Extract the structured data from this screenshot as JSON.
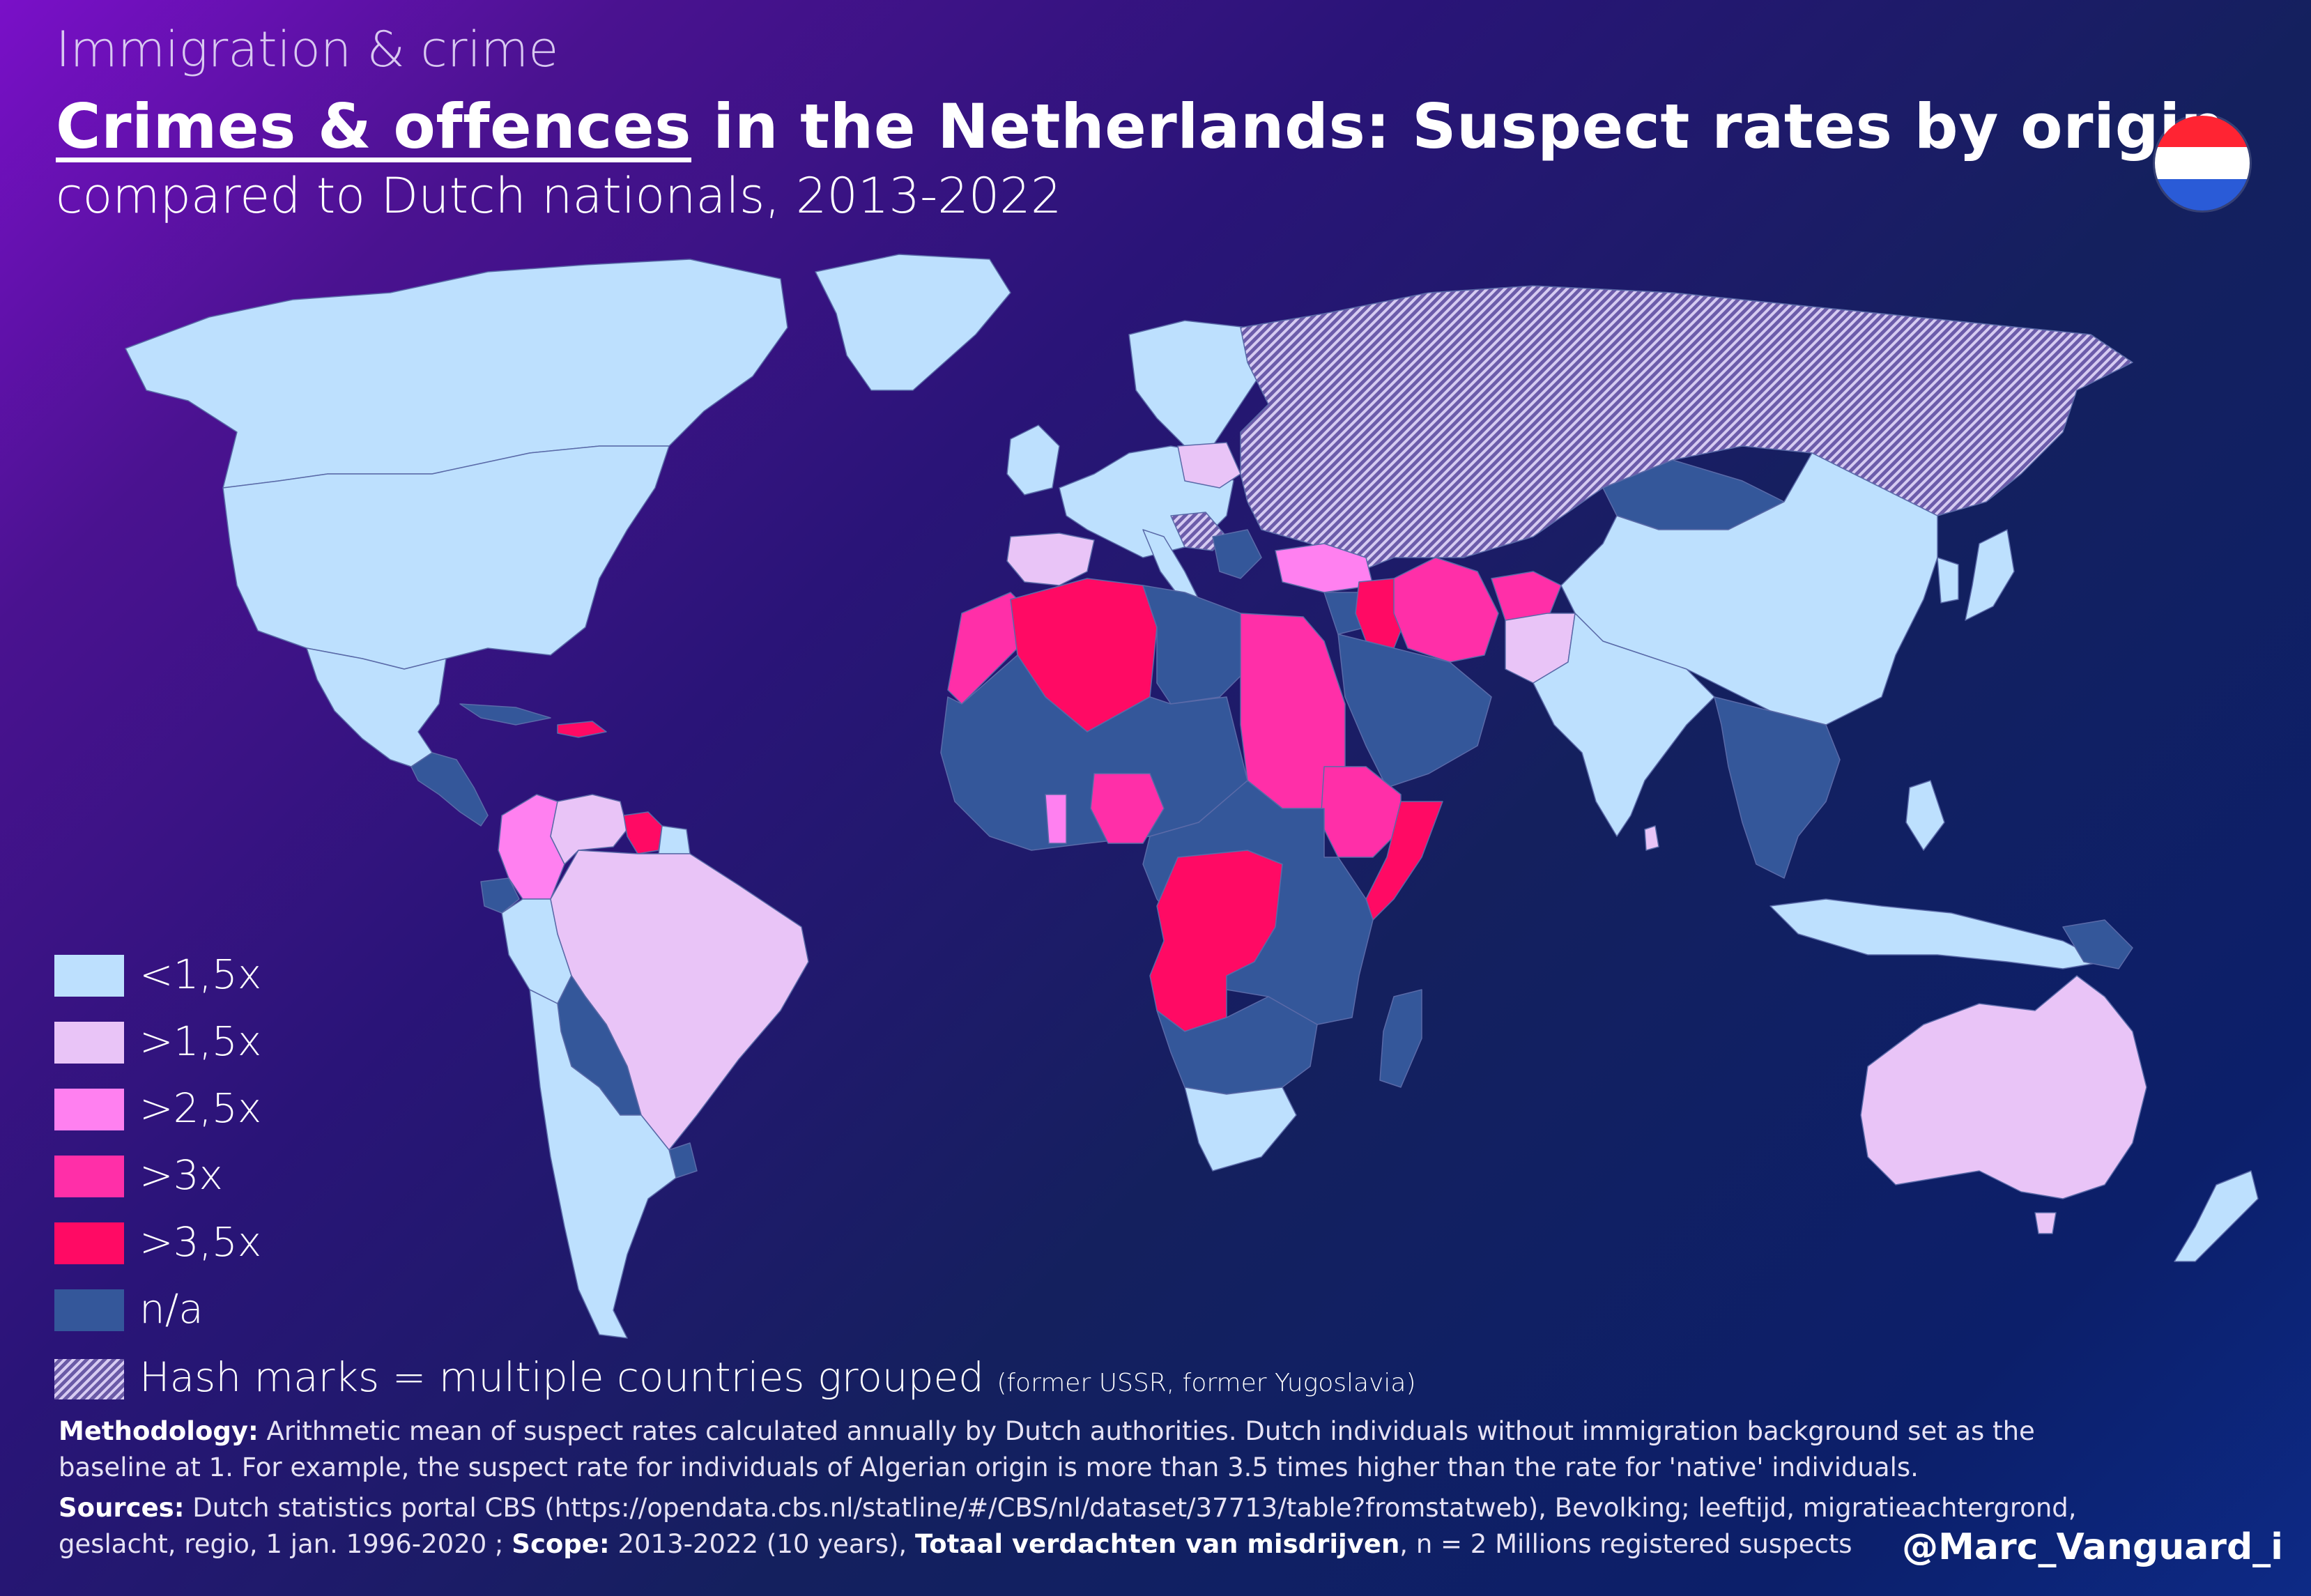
{
  "header": {
    "kicker": "Immigration & crime",
    "title_underlined": "Crimes & offences",
    "title_rest": " in the Netherlands: Suspect rates by origin",
    "subtitle": "compared to Dutch nationals, 2013-2022"
  },
  "flag": {
    "icon": "netherlands-flag-icon",
    "colors": [
      "#ff2433",
      "#ffffff",
      "#2a5bd7"
    ]
  },
  "legend": {
    "items": [
      {
        "label": "<1,5x",
        "color": "#bde0fe"
      },
      {
        "label": ">1,5x",
        "color": "#e9c4f7"
      },
      {
        "label": ">2,5x",
        "color": "#ff80f0"
      },
      {
        "label": ">3x",
        "color": "#ff2fa8"
      },
      {
        "label": ">3,5x",
        "color": "#ff0a64"
      },
      {
        "label": "n/a",
        "color": "#34579a"
      }
    ],
    "hash_label": "Hash marks = multiple countries grouped",
    "hash_note": "(former USSR, former Yugoslavia)"
  },
  "map_regions": [
    {
      "name": "canada",
      "category": "<1,5x"
    },
    {
      "name": "usa",
      "category": "<1,5x"
    },
    {
      "name": "mexico",
      "category": "<1,5x"
    },
    {
      "name": "greenland",
      "category": "<1,5x"
    },
    {
      "name": "central-america",
      "category": "n/a"
    },
    {
      "name": "haiti-dominican-republic",
      "category": ">3,5x"
    },
    {
      "name": "colombia",
      "category": ">2,5x"
    },
    {
      "name": "venezuela",
      "category": ">1,5x"
    },
    {
      "name": "suriname",
      "category": ">3,5x"
    },
    {
      "name": "brazil",
      "category": ">1,5x"
    },
    {
      "name": "peru",
      "category": "<1,5x"
    },
    {
      "name": "bolivia-paraguay",
      "category": "n/a"
    },
    {
      "name": "argentina-chile",
      "category": "<1,5x"
    },
    {
      "name": "western-europe",
      "category": "<1,5x"
    },
    {
      "name": "spain-portugal",
      "category": ">1,5x"
    },
    {
      "name": "former-ussr",
      "category": "<1,5x",
      "grouped": true
    },
    {
      "name": "former-yugoslavia",
      "category": "<1,5x",
      "grouped": true
    },
    {
      "name": "turkey",
      "category": ">2,5x"
    },
    {
      "name": "iraq",
      "category": ">3,5x"
    },
    {
      "name": "iran",
      "category": ">3x"
    },
    {
      "name": "afghanistan",
      "category": ">3x"
    },
    {
      "name": "pakistan",
      "category": ">1,5x"
    },
    {
      "name": "arabian-peninsula",
      "category": "n/a"
    },
    {
      "name": "morocco",
      "category": ">3x"
    },
    {
      "name": "algeria",
      "category": ">3,5x"
    },
    {
      "name": "egypt-sudan",
      "category": ">3x"
    },
    {
      "name": "ethiopia-eritrea",
      "category": ">3x"
    },
    {
      "name": "somalia",
      "category": ">3,5x"
    },
    {
      "name": "nigeria",
      "category": ">3x"
    },
    {
      "name": "ghana",
      "category": ">2,5x"
    },
    {
      "name": "congo-angola",
      "category": ">3,5x"
    },
    {
      "name": "rest-of-africa",
      "category": "n/a"
    },
    {
      "name": "south-africa",
      "category": "<1,5x"
    },
    {
      "name": "madagascar",
      "category": "n/a"
    },
    {
      "name": "china",
      "category": "<1,5x"
    },
    {
      "name": "india",
      "category": "<1,5x"
    },
    {
      "name": "mongolia",
      "category": "n/a"
    },
    {
      "name": "southeast-asia",
      "category": "n/a"
    },
    {
      "name": "japan",
      "category": "<1,5x"
    },
    {
      "name": "indonesia",
      "category": "<1,5x"
    },
    {
      "name": "sri-lanka",
      "category": ">1,5x"
    },
    {
      "name": "australia",
      "category": ">1,5x"
    },
    {
      "name": "new-zealand",
      "category": "<1,5x"
    }
  ],
  "footer": {
    "methodology_label": "Methodology:",
    "methodology_line1": " Arithmetic mean of suspect rates calculated annually by Dutch authorities. Dutch individuals without immigration background set as the",
    "methodology_line2": "baseline at 1. For example, the suspect rate for individuals of Algerian origin is more than 3.5 times higher than the rate for 'native' individuals.",
    "sources_label": "Sources:",
    "sources_line1": " Dutch statistics portal CBS (https://opendata.cbs.nl/statline/#/CBS/nl/dataset/37713/table?fromstatweb), Bevolking; leeftijd, migratieachtergrond,",
    "sources_line2_a": "geslacht, regio, 1 jan. 1996-2020 ; ",
    "scope_label": "Scope:",
    "scope_text": " 2013-2022 (10 years), ",
    "measure_label": "Totaal verdachten van misdrijven",
    "measure_text": ", n = 2 Millions registered suspects",
    "credit": "@Marc_Vanguard_i"
  }
}
